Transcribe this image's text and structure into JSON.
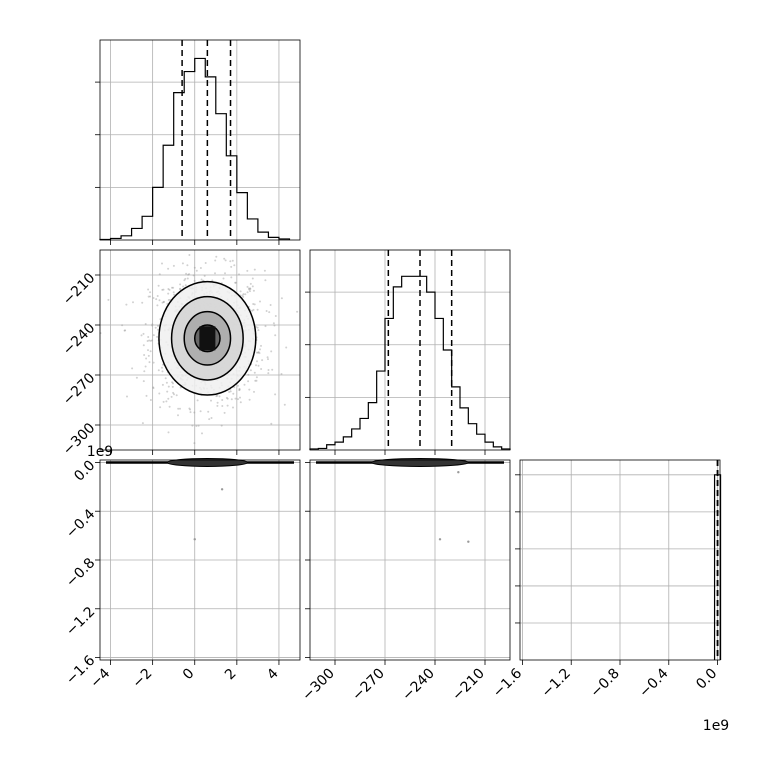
{
  "chart_data": {
    "type": "corner",
    "title": "",
    "parameters": [
      {
        "range": [
          -4.5,
          5.0
        ],
        "ticks": [
          -4,
          -2,
          0,
          2,
          4
        ],
        "tick_labels": [
          "−4",
          "−2",
          "0",
          "2",
          "4"
        ],
        "quantiles": [
          -0.6,
          0.6,
          1.7
        ]
      },
      {
        "range": [
          -315,
          -195
        ],
        "ticks": [
          -300,
          -270,
          -240,
          -210
        ],
        "tick_labels": [
          "−300",
          "−270",
          "−240",
          "−210"
        ],
        "quantiles": [
          -268,
          -249,
          -230
        ]
      },
      {
        "range": [
          -1.62,
          0.02
        ],
        "ticks": [
          -1.6,
          -1.2,
          -0.8,
          -0.4,
          0.0
        ],
        "tick_labels": [
          "−1.6",
          "−1.2",
          "−0.8",
          "−0.4",
          "0.0"
        ],
        "quantiles": [
          0.0,
          0.0,
          0.0
        ],
        "offset_label": "1e9"
      }
    ],
    "histogram_0": {
      "x": [
        -4.25,
        -3.75,
        -3.25,
        -2.75,
        -2.25,
        -1.75,
        -1.25,
        -0.75,
        -0.25,
        0.25,
        0.75,
        1.25,
        1.75,
        2.25,
        2.75,
        3.25,
        3.75,
        4.25
      ],
      "counts": [
        1,
        3,
        8,
        22,
        45,
        100,
        180,
        280,
        320,
        345,
        310,
        240,
        160,
        90,
        40,
        15,
        5,
        2
      ],
      "yticks": [
        0,
        100,
        200,
        300
      ],
      "ymax": 380
    },
    "histogram_1": {
      "x": [
        -312.5,
        -307.5,
        -302.5,
        -297.5,
        -292.5,
        -287.5,
        -282.5,
        -277.5,
        -272.5,
        -267.5,
        -262.5,
        -257.5,
        -252.5,
        -247.5,
        -242.5,
        -237.5,
        -232.5,
        -227.5,
        -222.5,
        -217.5,
        -212.5,
        -207.5,
        -202.5,
        -197.5
      ],
      "counts": [
        2,
        3,
        10,
        15,
        25,
        40,
        60,
        90,
        150,
        250,
        310,
        330,
        330,
        330,
        300,
        250,
        190,
        120,
        80,
        50,
        30,
        15,
        6,
        2
      ],
      "yticks": [
        0,
        100,
        200,
        300
      ],
      "ymax": 380
    },
    "histogram_2": {
      "x": [
        0.0
      ],
      "counts": [
        5000
      ],
      "yticks": [
        0,
        1000,
        2000,
        3000,
        4000,
        5000
      ],
      "ymax": 5400
    },
    "scatter_01": {
      "center": [
        0.6,
        -248
      ],
      "contour_levels": [
        {
          "rx": 2.3,
          "ry": 34
        },
        {
          "rx": 1.7,
          "ry": 25
        },
        {
          "rx": 1.1,
          "ry": 16
        },
        {
          "rx": 0.6,
          "ry": 8
        }
      ]
    },
    "scatter_02": {
      "band_y": 0.0,
      "band_x_range": [
        -1.5,
        2.5
      ],
      "outliers": [
        [
          1.3,
          -0.22
        ],
        [
          0.0,
          -0.63
        ]
      ]
    },
    "scatter_12": {
      "band_y": 0.0,
      "band_x_range": [
        -280,
        -220
      ],
      "outliers": [
        [
          -226,
          -0.08
        ],
        [
          -237,
          -0.63
        ],
        [
          -220,
          -0.65
        ]
      ]
    }
  }
}
